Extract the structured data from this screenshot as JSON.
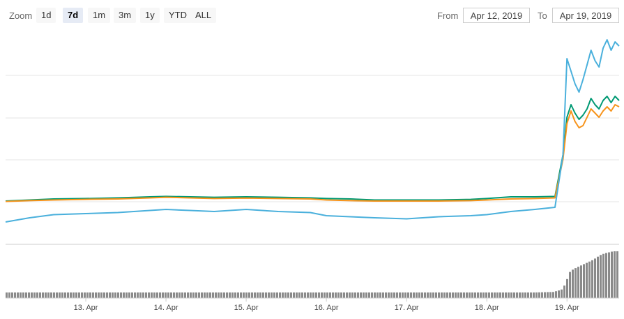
{
  "toolbar": {
    "zoom_label": "Zoom",
    "zoom_buttons": [
      "1d",
      "7d",
      "1m",
      "3m",
      "1y",
      "YTD",
      "ALL"
    ],
    "active_zoom": "7d",
    "from_label": "From",
    "from_value": "Apr 12, 2019",
    "to_label": "To",
    "to_value": "Apr 19, 2019"
  },
  "chart_data": {
    "type": "line",
    "title": "",
    "x_tick_labels": [
      "13. Apr",
      "14. Apr",
      "15. Apr",
      "16. Apr",
      "17. Apr",
      "18. Apr",
      "19. Apr"
    ],
    "x": [
      12.0,
      12.3,
      12.6,
      13.0,
      13.4,
      13.8,
      14.0,
      14.3,
      14.6,
      15.0,
      15.4,
      15.8,
      16.0,
      16.3,
      16.6,
      17.0,
      17.4,
      17.8,
      18.0,
      18.3,
      18.6,
      18.85,
      18.95,
      19.0,
      19.05,
      19.1,
      19.15,
      19.2,
      19.25,
      19.3,
      19.35,
      19.4,
      19.45,
      19.5,
      19.55,
      19.6,
      19.65
    ],
    "grid": true,
    "y_gridlines": 5,
    "series": [
      {
        "color": "#009973",
        "values": [
          2.0,
          2.05,
          2.1,
          2.12,
          2.15,
          2.2,
          2.22,
          2.2,
          2.18,
          2.2,
          2.18,
          2.15,
          2.12,
          2.1,
          2.05,
          2.05,
          2.05,
          2.08,
          2.12,
          2.2,
          2.2,
          2.22,
          4.2,
          6.0,
          6.6,
          6.2,
          5.9,
          6.1,
          6.4,
          6.9,
          6.6,
          6.4,
          6.8,
          7.0,
          6.7,
          7.0,
          6.8
        ]
      },
      {
        "color": "#f7931a",
        "values": [
          1.98,
          2.02,
          2.05,
          2.08,
          2.1,
          2.15,
          2.18,
          2.15,
          2.12,
          2.14,
          2.12,
          2.1,
          2.05,
          2.02,
          2.0,
          2.0,
          2.0,
          2.02,
          2.05,
          2.1,
          2.12,
          2.15,
          4.0,
          5.7,
          6.3,
          5.8,
          5.5,
          5.6,
          6.0,
          6.4,
          6.2,
          6.0,
          6.3,
          6.5,
          6.3,
          6.6,
          6.5
        ]
      },
      {
        "color": "#4ab0dc",
        "values": [
          1.0,
          1.2,
          1.35,
          1.4,
          1.45,
          1.55,
          1.6,
          1.55,
          1.5,
          1.6,
          1.5,
          1.45,
          1.3,
          1.25,
          1.2,
          1.15,
          1.25,
          1.3,
          1.35,
          1.5,
          1.6,
          1.7,
          4.2,
          8.8,
          8.2,
          7.6,
          7.2,
          7.8,
          8.5,
          9.2,
          8.7,
          8.4,
          9.3,
          9.7,
          9.2,
          9.6,
          9.4
        ]
      }
    ],
    "navigator": {
      "volume": [
        0.12,
        0.12,
        0.12,
        0.12,
        0.12,
        0.12,
        0.12,
        0.12,
        0.12,
        0.12,
        0.12,
        0.12,
        0.12,
        0.12,
        0.12,
        0.12,
        0.12,
        0.12,
        0.12,
        0.12,
        0.12,
        0.13,
        0.18,
        0.3,
        0.55,
        0.62,
        0.66,
        0.7,
        0.74,
        0.78,
        0.82,
        0.88,
        0.93,
        0.96,
        0.98,
        1.0,
        1.0
      ]
    }
  }
}
